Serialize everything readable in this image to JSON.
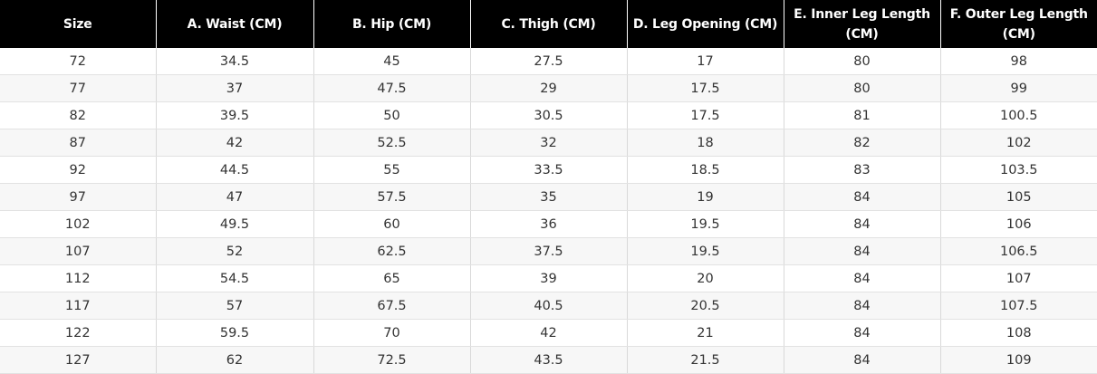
{
  "table": {
    "headers": [
      "Size",
      "A. Waist (CM)",
      "B. Hip (CM)",
      "C. Thigh (CM)",
      "D. Leg Opening (CM)",
      "E. Inner Leg Length (CM)",
      "F. Outer Leg Length (CM)"
    ],
    "rows": [
      [
        "72",
        "34.5",
        "45",
        "27.5",
        "17",
        "80",
        "98"
      ],
      [
        "77",
        "37",
        "47.5",
        "29",
        "17.5",
        "80",
        "99"
      ],
      [
        "82",
        "39.5",
        "50",
        "30.5",
        "17.5",
        "81",
        "100.5"
      ],
      [
        "87",
        "42",
        "52.5",
        "32",
        "18",
        "82",
        "102"
      ],
      [
        "92",
        "44.5",
        "55",
        "33.5",
        "18.5",
        "83",
        "103.5"
      ],
      [
        "97",
        "47",
        "57.5",
        "35",
        "19",
        "84",
        "105"
      ],
      [
        "102",
        "49.5",
        "60",
        "36",
        "19.5",
        "84",
        "106"
      ],
      [
        "107",
        "52",
        "62.5",
        "37.5",
        "19.5",
        "84",
        "106.5"
      ],
      [
        "112",
        "54.5",
        "65",
        "39",
        "20",
        "84",
        "107"
      ],
      [
        "117",
        "57",
        "67.5",
        "40.5",
        "20.5",
        "84",
        "107.5"
      ],
      [
        "122",
        "59.5",
        "70",
        "42",
        "21",
        "84",
        "108"
      ],
      [
        "127",
        "62",
        "72.5",
        "43.5",
        "21.5",
        "84",
        "109"
      ]
    ]
  },
  "colors": {
    "header_bg": "#000000",
    "header_text": "#ffffff",
    "body_text": "#333333",
    "stripe_bg": "#f7f7f7"
  }
}
